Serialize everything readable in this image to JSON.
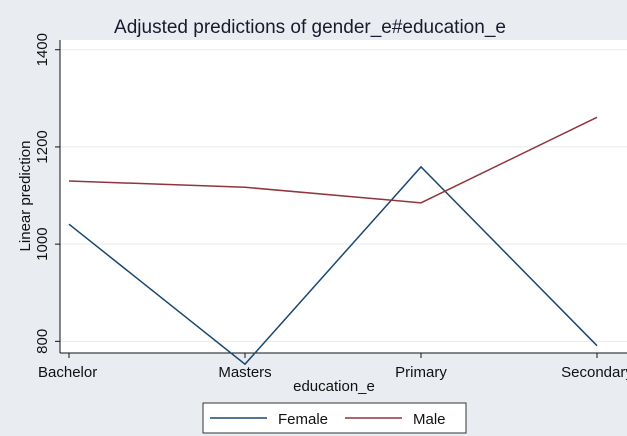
{
  "chart_data": {
    "type": "line",
    "title": "Adjusted predictions of gender_e#education_e",
    "xlabel": "education_e",
    "ylabel": "Linear prediction",
    "categories": [
      "Bachelor",
      "Masters",
      "Primary",
      "Secondary"
    ],
    "yticks": [
      800,
      1000,
      1200,
      1400
    ],
    "ylim": [
      776,
      1420
    ],
    "grid": true,
    "legend_position": "bottom",
    "series": [
      {
        "name": "Female",
        "color": "#1a476f",
        "values": [
          1041,
          753,
          1159,
          791
        ]
      },
      {
        "name": "Male",
        "color": "#90353b",
        "values": [
          1130,
          1117,
          1085,
          1261
        ]
      }
    ]
  }
}
